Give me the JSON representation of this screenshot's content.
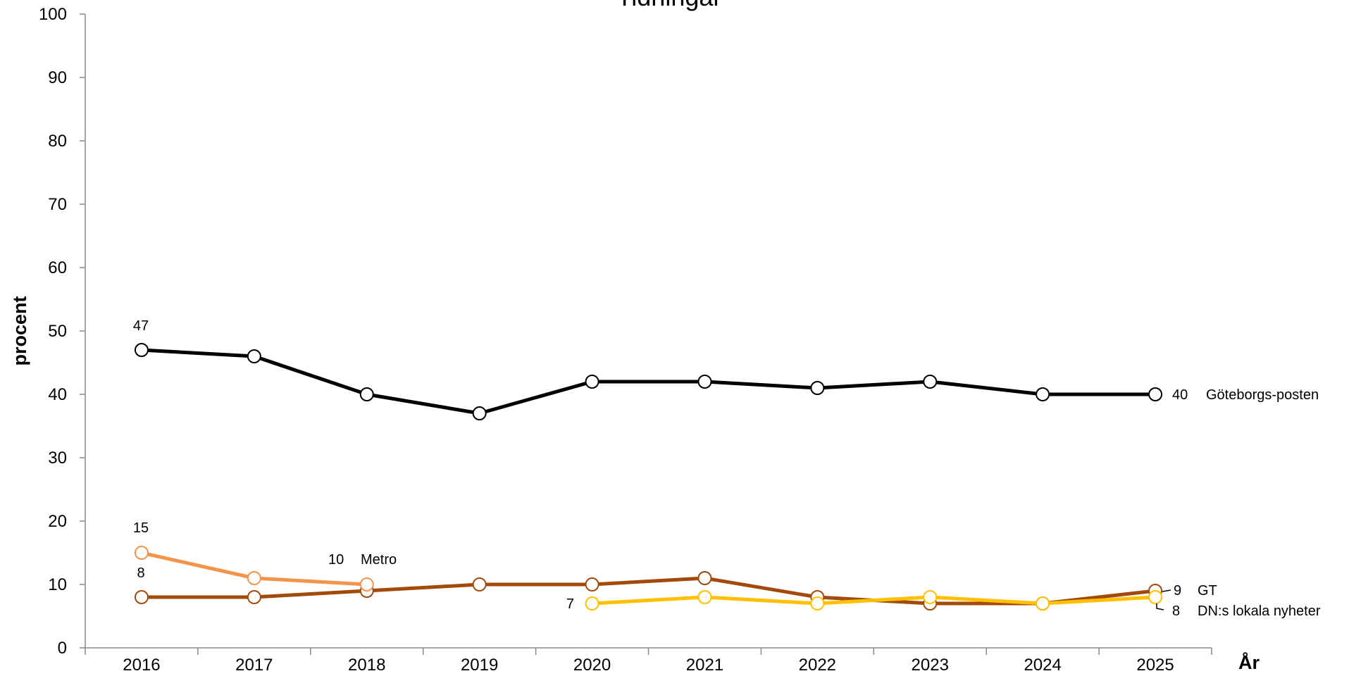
{
  "chart_data": {
    "type": "line",
    "title": "Tidningar",
    "xlabel": "År",
    "ylabel": "procent",
    "categories": [
      "2016",
      "2017",
      "2018",
      "2019",
      "2020",
      "2021",
      "2022",
      "2023",
      "2024",
      "2025"
    ],
    "ylim": [
      0,
      100
    ],
    "yticks": [
      "0",
      "10",
      "20",
      "30",
      "40",
      "50",
      "60",
      "70",
      "80",
      "90",
      "100"
    ],
    "grid": false,
    "series": [
      {
        "name": "Göteborgs-posten",
        "color": "#000000",
        "values": [
          47,
          46,
          40,
          37,
          42,
          42,
          41,
          42,
          40,
          40
        ]
      },
      {
        "name": "Metro",
        "color": "#F4944A",
        "values": [
          15,
          11,
          10,
          null,
          null,
          null,
          null,
          null,
          null,
          null
        ]
      },
      {
        "name": "GT",
        "color": "#A34A0A",
        "values": [
          8,
          8,
          9,
          10,
          10,
          11,
          8,
          7,
          7,
          9
        ]
      },
      {
        "name": "DN:s lokala nyheter",
        "color": "#FFC000",
        "values": [
          null,
          null,
          null,
          null,
          7,
          8,
          7,
          8,
          7,
          8
        ]
      }
    ],
    "annotations": {
      "gp_first": "47",
      "gp_last": "40",
      "metro_first": "15",
      "metro_last": "10",
      "gt_first": "8",
      "gt_last": "9",
      "dn_first": "7",
      "dn_last": "8"
    }
  }
}
